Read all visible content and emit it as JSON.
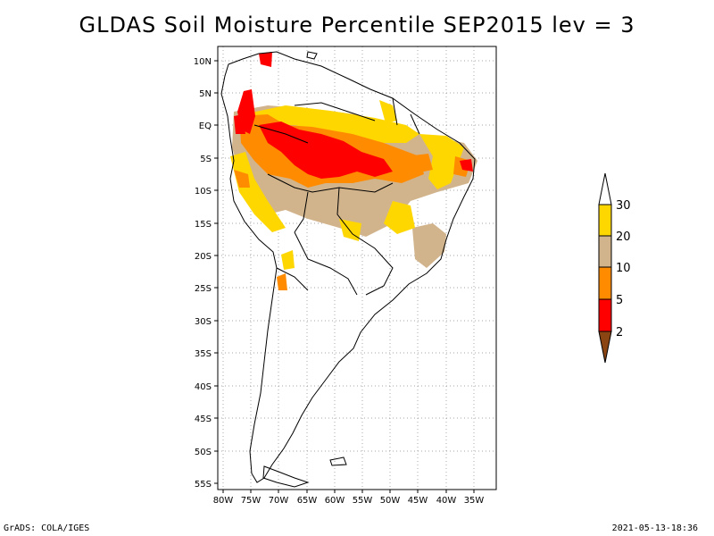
{
  "title": "GLDAS Soil Moisture Percentile SEP2015 lev = 3",
  "footer_left": "GrADS: COLA/IGES",
  "footer_right": "2021-05-13-18:36",
  "lat_labels": [
    "10N",
    "5N",
    "EQ",
    "5S",
    "10S",
    "15S",
    "20S",
    "25S",
    "30S",
    "35S",
    "40S",
    "45S",
    "50S",
    "55S"
  ],
  "lon_labels": [
    "80W",
    "75W",
    "70W",
    "65W",
    "60W",
    "55W",
    "50W",
    "45W",
    "40W",
    "35W"
  ],
  "colorbar": {
    "labels": [
      "2",
      "5",
      "10",
      "20",
      "30"
    ],
    "colors": {
      "lt2": "#8b4513",
      "2to5": "#ff0000",
      "5to10": "#ff8c00",
      "10to20": "#d2b48c",
      "20to30": "#ffd700",
      "gt30": "#ffffff"
    }
  }
}
